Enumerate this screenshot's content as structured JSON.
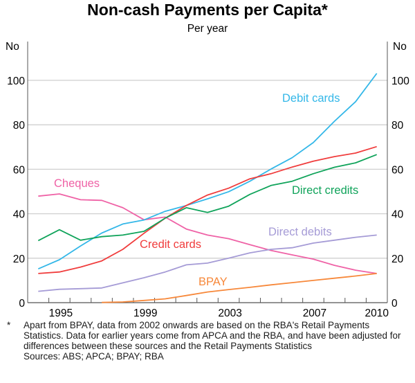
{
  "chart_data": {
    "type": "line",
    "title": "Non-cash Payments per Capita*",
    "subtitle": "Per year",
    "ylabel_left": "No",
    "ylabel_right": "No",
    "ylim": [
      0,
      110
    ],
    "yticks": [
      0,
      20,
      40,
      60,
      80,
      100
    ],
    "xtick_labels": [
      "1995",
      "1999",
      "2003",
      "2007",
      "2010"
    ],
    "x": [
      1994,
      1995,
      1996,
      1997,
      1998,
      1999,
      2000,
      2001,
      2002,
      2003,
      2004,
      2005,
      2006,
      2007,
      2008,
      2009,
      2010
    ],
    "grid": true,
    "series": [
      {
        "name": "Cheques",
        "color": "#ef62a6",
        "values": [
          47.9,
          48.9,
          46.3,
          46.0,
          42.7,
          37.3,
          38.5,
          33.1,
          30.4,
          28.8,
          26.1,
          23.5,
          21.5,
          19.6,
          16.8,
          14.6,
          13.1
        ]
      },
      {
        "name": "Debit cards",
        "color": "#33b7e8",
        "values": [
          15.2,
          19.3,
          25.5,
          31.3,
          35.4,
          37.2,
          41.1,
          43.7,
          46.7,
          49.9,
          54.6,
          60.1,
          65.2,
          72.0,
          81.6,
          90.4,
          103.1
        ]
      },
      {
        "name": "Credit cards",
        "color": "#f03c3c",
        "values": [
          13.1,
          13.8,
          16.0,
          18.8,
          24.0,
          31.2,
          38.0,
          43.7,
          48.4,
          51.5,
          55.7,
          58.0,
          61.0,
          63.6,
          65.7,
          67.3,
          70.2
        ]
      },
      {
        "name": "Direct credits",
        "color": "#0fa35a",
        "values": [
          27.9,
          32.8,
          28.1,
          29.7,
          30.4,
          32.1,
          38.0,
          42.7,
          40.6,
          43.4,
          48.7,
          52.7,
          54.6,
          58.0,
          60.9,
          62.9,
          66.6
        ]
      },
      {
        "name": "Direct debits",
        "color": "#a59bd6",
        "values": [
          5.1,
          6.0,
          6.3,
          6.6,
          8.9,
          11.2,
          13.8,
          17.0,
          17.8,
          20.0,
          22.4,
          24.0,
          24.7,
          26.8,
          28.1,
          29.4,
          30.4
        ]
      },
      {
        "name": "BPAY",
        "color": "#f7883a",
        "values": [
          null,
          null,
          null,
          0.1,
          0.3,
          1.0,
          1.7,
          3.2,
          4.8,
          5.9,
          6.9,
          8.0,
          9.0,
          10.0,
          11.0,
          12.0,
          13.1
        ]
      }
    ]
  },
  "notes": {
    "footnote_marker": "*",
    "footnote": "Apart from BPAY, data from 2002 onwards are based on the RBA's Retail Payments Statistics. Data for earlier years come from APCA and the RBA, and have been adjusted for differences between these sources and the Retail Payments Statistics",
    "sources": "Sources: ABS; APCA; BPAY; RBA"
  }
}
